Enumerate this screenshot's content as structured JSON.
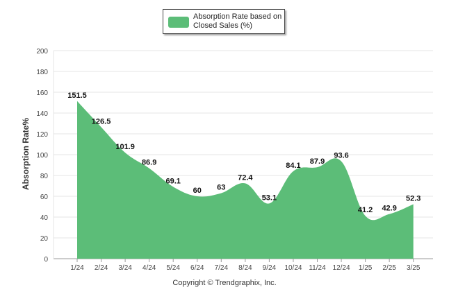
{
  "chart_data": {
    "type": "area",
    "categories": [
      "1/24",
      "2/24",
      "3/24",
      "4/24",
      "5/24",
      "6/24",
      "7/24",
      "8/24",
      "9/24",
      "10/24",
      "11/24",
      "12/24",
      "1/25",
      "2/25",
      "3/25"
    ],
    "series": [
      {
        "name": "Absorption Rate based on Closed Sales (%)",
        "values": [
          151.5,
          126.5,
          101.9,
          86.9,
          69.1,
          60,
          63,
          72.4,
          53.1,
          84.1,
          87.9,
          93.6,
          41.2,
          42.9,
          52.3
        ],
        "labels": [
          "151.5",
          "126.5",
          "101.9",
          "86.9",
          "69.1",
          "60",
          "63",
          "72.4",
          "53.1",
          "84.1",
          "87.9",
          "93.6",
          "41.2",
          "42.9",
          "52.3"
        ]
      }
    ],
    "ylabel": "Absorption Rate%",
    "xlabel": "",
    "ylim": [
      0,
      200
    ],
    "yticks": [
      "0",
      "20",
      "40",
      "60",
      "80",
      "100",
      "120",
      "140",
      "160",
      "180",
      "200"
    ],
    "grid": true,
    "legend_position": "top-center",
    "colors": {
      "fill": "#5cbd78",
      "grid": "#e6e6e6",
      "axis": "#999999"
    }
  },
  "legend": {
    "label": "Absorption Rate based on Closed Sales (%)"
  },
  "footer": {
    "copyright": "Copyright © Trendgraphix, Inc."
  }
}
